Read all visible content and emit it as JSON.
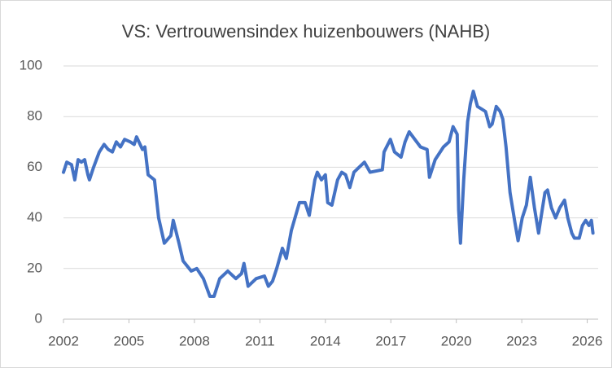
{
  "chart_data": {
    "type": "line",
    "title": "VS: Vertrouwensindex huizenbouwers (NAHB)",
    "x": [
      2002.0,
      2002.15,
      2002.37,
      2002.52,
      2002.67,
      2002.82,
      2002.97,
      2003.12,
      2003.19,
      2003.38,
      2003.64,
      2003.86,
      2004.05,
      2004.24,
      2004.42,
      2004.61,
      2004.8,
      2005.06,
      2005.24,
      2005.35,
      2005.62,
      2005.73,
      2005.88,
      2006.17,
      2006.36,
      2006.62,
      2006.92,
      2007.03,
      2007.29,
      2007.48,
      2007.85,
      2008.11,
      2008.41,
      2008.71,
      2008.9,
      2009.16,
      2009.53,
      2009.9,
      2010.16,
      2010.27,
      2010.46,
      2010.83,
      2011.21,
      2011.39,
      2011.58,
      2011.77,
      2012.03,
      2012.21,
      2012.44,
      2012.81,
      2013.07,
      2013.26,
      2013.52,
      2013.63,
      2013.82,
      2014.0,
      2014.11,
      2014.3,
      2014.56,
      2014.75,
      2014.93,
      2015.12,
      2015.31,
      2015.79,
      2016.05,
      2016.61,
      2016.69,
      2016.98,
      2017.17,
      2017.47,
      2017.65,
      2017.84,
      2018.1,
      2018.36,
      2018.66,
      2018.77,
      2019.03,
      2019.41,
      2019.67,
      2019.85,
      2020.04,
      2020.11,
      2020.19,
      2020.34,
      2020.52,
      2020.64,
      2020.78,
      2020.97,
      2021.16,
      2021.34,
      2021.53,
      2021.64,
      2021.83,
      2022.01,
      2022.13,
      2022.28,
      2022.46,
      2022.69,
      2022.83,
      2023.02,
      2023.21,
      2023.39,
      2023.58,
      2023.77,
      2023.88,
      2024.06,
      2024.18,
      2024.36,
      2024.55,
      2024.74,
      2024.96,
      2025.11,
      2025.29,
      2025.41,
      2025.63,
      2025.78,
      2025.93,
      2026.08,
      2026.19,
      2026.26
    ],
    "series": [
      {
        "name": "NAHB",
        "color": "#4472c4",
        "values": [
          58,
          62,
          61,
          55,
          63,
          62,
          63,
          57,
          55,
          60,
          66,
          69,
          67,
          66,
          70,
          68,
          71,
          70,
          69,
          72,
          67,
          68,
          57,
          55,
          40,
          30,
          33,
          39,
          30,
          23,
          19,
          20,
          16,
          9,
          9,
          16,
          19,
          16,
          18,
          22,
          13,
          16,
          17,
          13,
          15,
          20,
          28,
          24,
          35,
          46,
          46,
          41,
          55,
          58,
          55,
          57,
          46,
          45,
          55,
          58,
          57,
          52,
          58,
          62,
          58,
          59,
          66,
          71,
          66,
          64,
          70,
          74,
          71,
          68,
          67,
          56,
          63,
          68,
          70,
          76,
          73,
          43,
          30,
          55,
          78,
          85,
          90,
          84,
          83,
          82,
          76,
          77,
          84,
          82,
          79,
          68,
          50,
          38,
          31,
          40,
          45,
          56,
          44,
          34,
          40,
          50,
          51,
          44,
          40,
          44,
          47,
          40,
          34,
          32,
          32,
          37,
          39,
          37,
          39,
          34
        ]
      }
    ],
    "xlim": [
      2002,
      2026.5
    ],
    "xticks": [
      2002,
      2005,
      2008,
      2011,
      2014,
      2017,
      2020,
      2023,
      2026
    ],
    "ylim": [
      0,
      100
    ],
    "yticks": [
      0,
      20,
      40,
      60,
      80,
      100
    ],
    "grid": true
  }
}
